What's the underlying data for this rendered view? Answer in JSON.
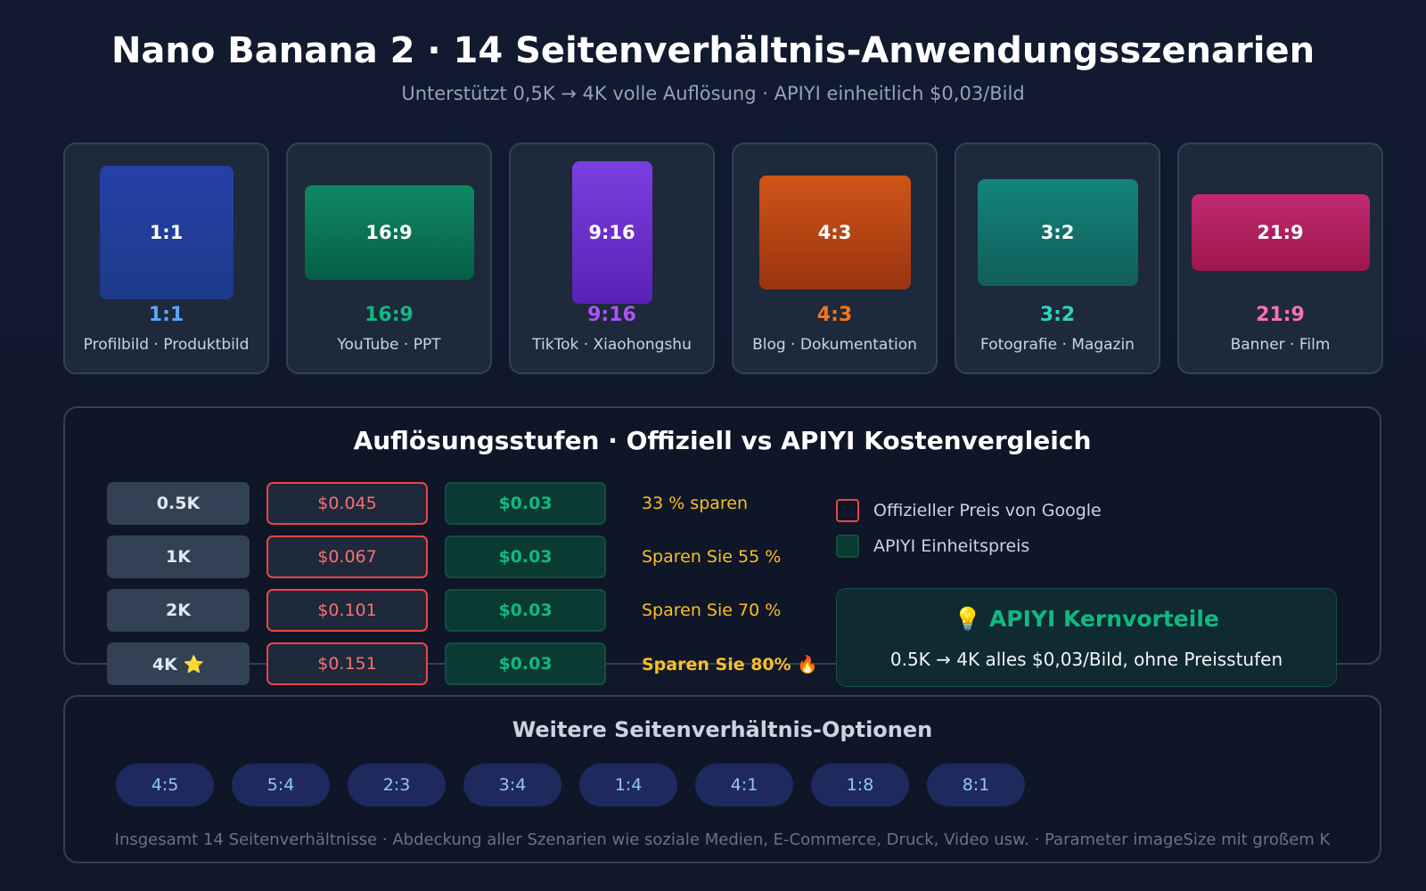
{
  "header": {
    "title": "Nano Banana 2 · 14 Seitenverhältnis-Anwendungsszenarien",
    "subtitle": "Unterstützt 0,5K → 4K volle Auflösung · APIYI einheitlich $0,03/Bild"
  },
  "ratios": [
    {
      "name": "1:1",
      "use": "Profilbild · Produktbild"
    },
    {
      "name": "16:9",
      "use": "YouTube · PPT"
    },
    {
      "name": "9:16",
      "use": "TikTok · Xiaohongshu"
    },
    {
      "name": "4:3",
      "use": "Blog · Dokumentation"
    },
    {
      "name": "3:2",
      "use": "Fotografie · Magazin"
    },
    {
      "name": "21:9",
      "use": "Banner · Film"
    }
  ],
  "pricing": {
    "title": "Auflösungsstufen · Offiziell vs APIYI Kostenvergleich",
    "rows": [
      {
        "tier": "0.5K",
        "official": "$0.045",
        "apiyi": "$0.03",
        "saving": "33 % sparen"
      },
      {
        "tier": "1K",
        "official": "$0.067",
        "apiyi": "$0.03",
        "saving": "Sparen Sie 55 %"
      },
      {
        "tier": "2K",
        "official": "$0.101",
        "apiyi": "$0.03",
        "saving": "Sparen Sie 70 %"
      },
      {
        "tier": "4K ⭐",
        "official": "$0.151",
        "apiyi": "$0.03",
        "saving": "Sparen Sie 80% 🔥"
      }
    ],
    "legend": [
      "Offizieller Preis von Google",
      "APIYI Einheitspreis"
    ],
    "advantage": {
      "title": "💡 APIYI Kernvorteile",
      "text": "0.5K → 4K alles $0,03/Bild, ohne Preisstufen"
    }
  },
  "more": {
    "title": "Weitere Seitenverhältnis-Optionen",
    "options": [
      "4:5",
      "5:4",
      "2:3",
      "3:4",
      "1:4",
      "4:1",
      "1:8",
      "8:1"
    ],
    "footer": "Insgesamt 14 Seitenverhältnisse · Abdeckung aller Szenarien wie soziale Medien, E-Commerce, Druck, Video usw. · Parameter imageSize mit großem K"
  }
}
